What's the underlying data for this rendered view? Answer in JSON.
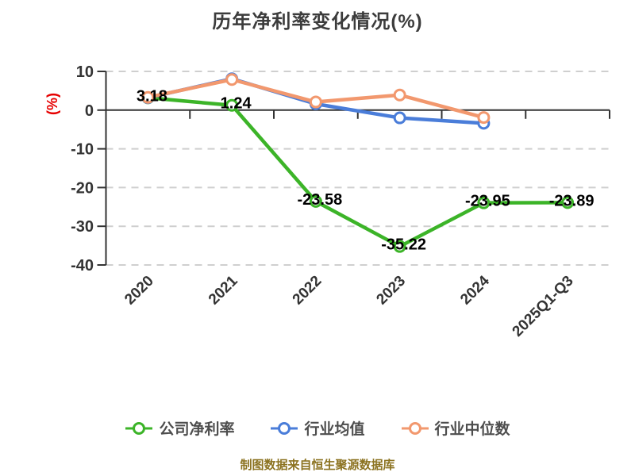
{
  "page": {
    "background": "#ffffff"
  },
  "chart_data": {
    "type": "line",
    "title": "历年净利率变化情况(%)",
    "ylabel": "(%)",
    "xlabel": "",
    "categories": [
      "2020",
      "2021",
      "2022",
      "2023",
      "2024",
      "2025Q1-Q3"
    ],
    "series": [
      {
        "name": "公司净利率",
        "color": "#3cb428",
        "marker_fill": "#ffffff",
        "values": [
          3.18,
          1.24,
          -23.58,
          -35.22,
          -23.95,
          -23.89
        ],
        "labels": [
          "3.18",
          "1.24",
          "-23.58",
          "-35.22",
          "-23.95",
          "-23.89"
        ]
      },
      {
        "name": "行业均值",
        "color": "#4a7dd9",
        "marker_fill": "#ffffff",
        "values": [
          3.2,
          8.1,
          1.6,
          -2.0,
          -3.4,
          null
        ]
      },
      {
        "name": "行业中位数",
        "color": "#f2986e",
        "marker_fill": "#ffffff",
        "values": [
          3.3,
          7.9,
          2.1,
          3.9,
          -1.9,
          null
        ]
      }
    ],
    "ylim": [
      -40,
      10
    ],
    "yticks": [
      10,
      0,
      -10,
      -20,
      -30,
      -40
    ],
    "grid": "horizontal-dashed",
    "grid_color": "#cfcfcf",
    "axis_color": "#333333",
    "label_color": "#000000",
    "unit_label_color": "#e60000",
    "legend_position": "bottom",
    "source_note": "制图数据来自恒生聚源数据库",
    "source_note_color": "#8c7321"
  }
}
